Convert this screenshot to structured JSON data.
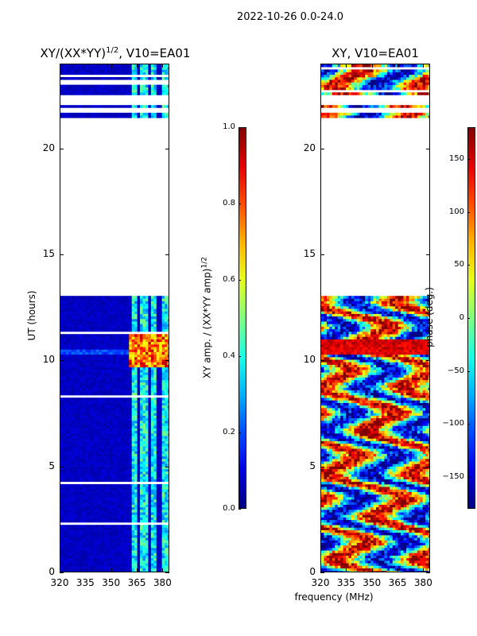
{
  "figure_title": "2022-10-26 0.0-24.0",
  "xlabel_shared": "frequency (MHz)",
  "chart_data": [
    {
      "type": "heatmap",
      "title": "XY/(XX*YY)^1/2, V10=EA01",
      "title_main": "XY/(XX*YY)",
      "title_sup": "1/2",
      "title_tail": ", V10=EA01",
      "xlabel": "frequency (MHz)",
      "ylabel": "UT (hours)",
      "xlim": [
        320,
        384
      ],
      "ylim": [
        0,
        24
      ],
      "xticks": [
        320,
        335,
        350,
        365,
        380
      ],
      "yticks": [
        0,
        5,
        10,
        15,
        20
      ],
      "colorbar": {
        "label_main": "XY amp. / (XX*YY amp)",
        "label_sup": "1/2",
        "range": [
          0.0,
          1.0
        ],
        "ticks": [
          "0.0",
          "0.2",
          "0.4",
          "0.6",
          "0.8",
          "1.0"
        ],
        "colormap": "jet"
      },
      "data_gaps_hours": [
        [
          13.0,
          21.4
        ],
        [
          21.7,
          21.85
        ],
        [
          22.0,
          22.5
        ],
        [
          23.0,
          23.2
        ]
      ],
      "bright_channels_MHz": [
        [
          361,
          364
        ],
        [
          366,
          370
        ],
        [
          372,
          376
        ],
        [
          378,
          383
        ]
      ],
      "peak_interval_hours": [
        9.7,
        11.2
      ]
    },
    {
      "type": "heatmap",
      "title": "XY, V10=EA01",
      "xlabel": "frequency (MHz)",
      "ylabel": "",
      "xlim": [
        320,
        384
      ],
      "ylim": [
        0,
        24
      ],
      "xticks": [
        320,
        335,
        350,
        365,
        380
      ],
      "yticks": [
        0,
        5,
        10,
        15,
        20
      ],
      "colorbar": {
        "label": "phase (deg.)",
        "range": [
          -180,
          180
        ],
        "ticks": [
          "−150",
          "−100",
          "−50",
          "0",
          "50",
          "100",
          "150"
        ],
        "colormap": "jet"
      },
      "data_gaps_hours": [
        [
          13.0,
          21.4
        ],
        [
          21.7,
          21.85
        ],
        [
          22.0,
          22.5
        ]
      ],
      "peak_interval_hours": [
        10.3,
        11.0
      ]
    }
  ]
}
